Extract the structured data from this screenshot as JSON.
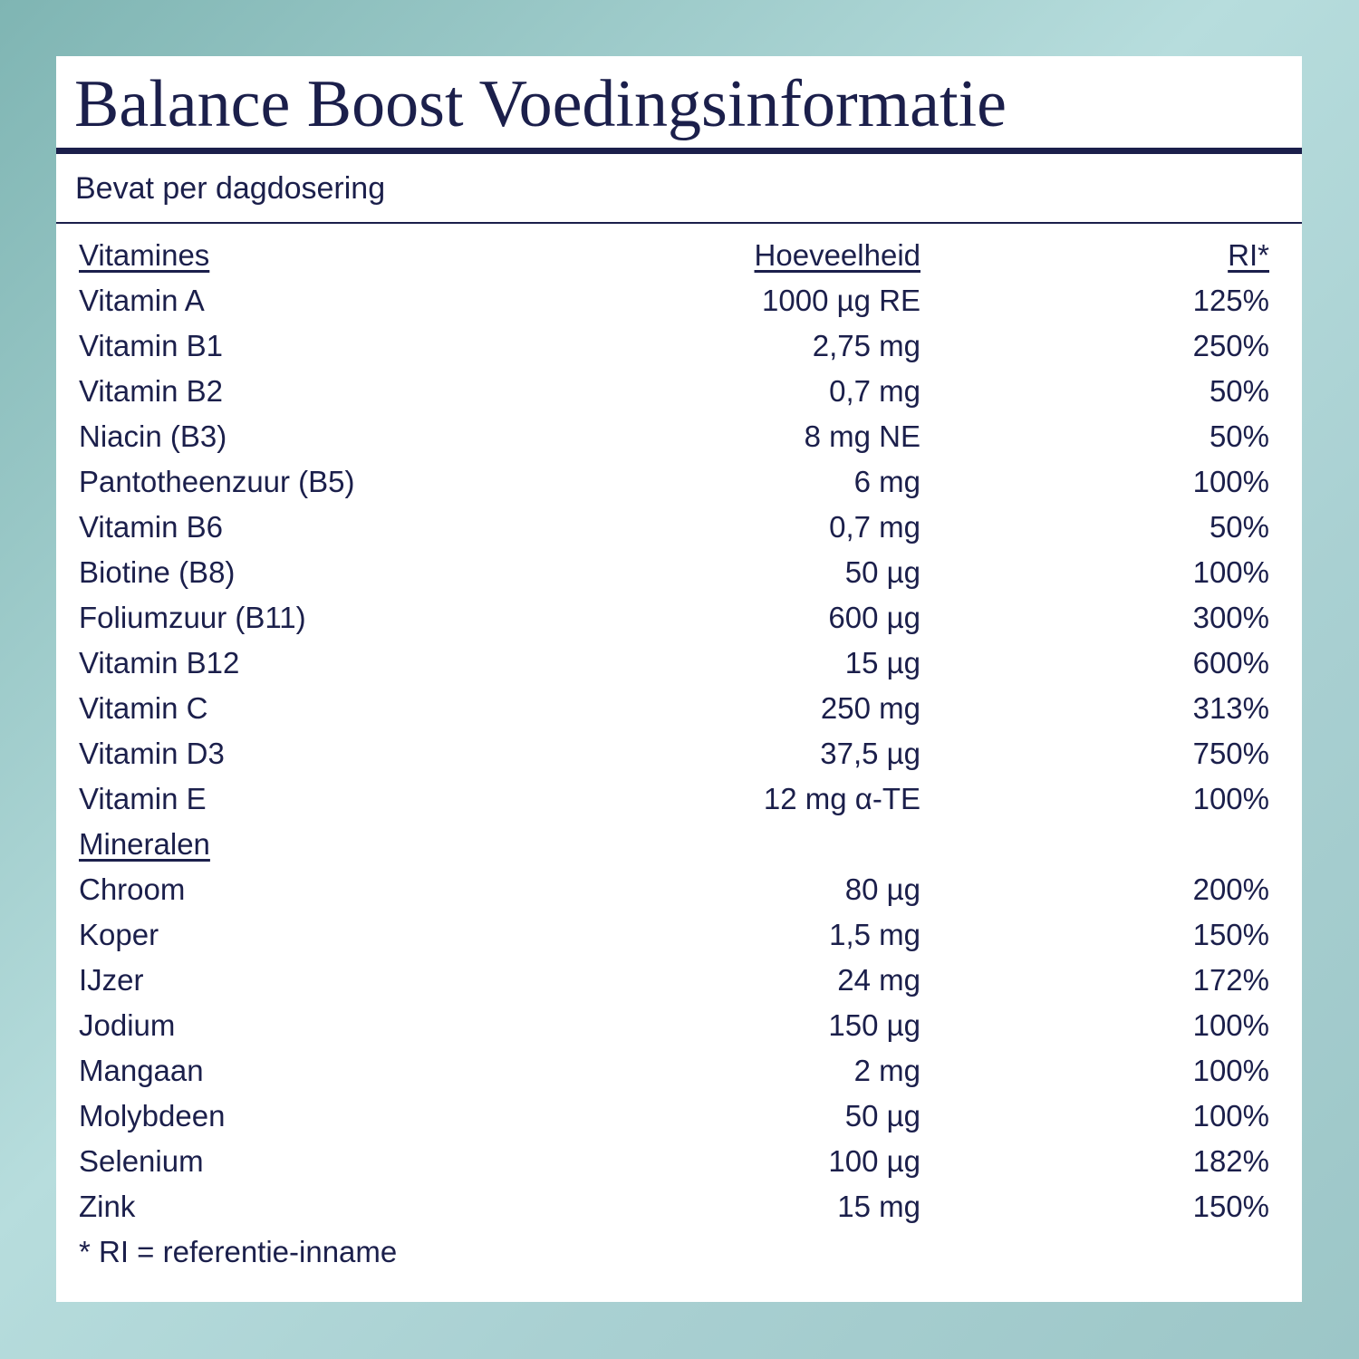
{
  "header": {
    "title": "Balance Boost Voedingsinformatie",
    "subtitle": "Bevat per dagdosering"
  },
  "table": {
    "columns": [
      "Vitamines",
      "Hoeveelheid",
      "RI*"
    ],
    "vitamins": [
      [
        "Vitamin A",
        "1000 µg RE",
        "125%"
      ],
      [
        "Vitamin B1",
        "2,75 mg",
        "250%"
      ],
      [
        "Vitamin B2",
        "0,7 mg",
        "50%"
      ],
      [
        "Niacin (B3)",
        "8 mg NE",
        "50%"
      ],
      [
        "Pantotheenzuur (B5)",
        "6 mg",
        "100%"
      ],
      [
        "Vitamin B6",
        "0,7 mg",
        "50%"
      ],
      [
        "Biotine (B8)",
        "50 µg",
        "100%"
      ],
      [
        "Foliumzuur (B11)",
        "600 µg",
        "300%"
      ],
      [
        "Vitamin B12",
        "15 µg",
        "600%"
      ],
      [
        "Vitamin C",
        "250 mg",
        "313%"
      ],
      [
        "Vitamin D3",
        "37,5 µg",
        "750%"
      ],
      [
        "Vitamin E",
        "12 mg α-TE",
        "100%"
      ]
    ],
    "minerals_heading": "Mineralen",
    "minerals": [
      [
        "Chroom",
        "80 µg",
        "200%"
      ],
      [
        "Koper",
        "1,5 mg",
        "150%"
      ],
      [
        "IJzer",
        "24 mg",
        "172%"
      ],
      [
        "Jodium",
        "150 µg",
        "100%"
      ],
      [
        "Mangaan",
        "2 mg",
        "100%"
      ],
      [
        "Molybdeen",
        "50 µg",
        "100%"
      ],
      [
        "Selenium",
        "100 µg",
        "182%"
      ],
      [
        "Zink",
        "15 mg",
        "150%"
      ]
    ],
    "footnote": "* RI = referentie-inname"
  }
}
